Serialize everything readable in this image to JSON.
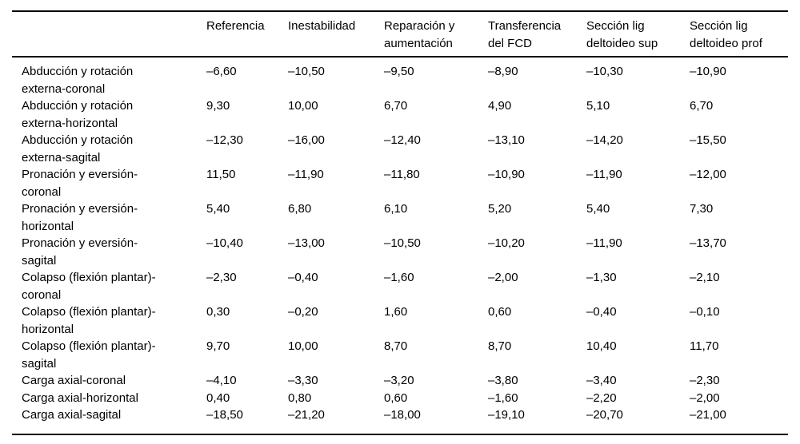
{
  "table": {
    "corner_label": "",
    "columns": [
      "Referencia",
      "Inestabilidad",
      "Reparación y\naumentación",
      "Transferencia\ndel FCD",
      "Sección lig\ndeltoideo sup",
      "Sección lig\ndeltoideo prof"
    ],
    "rows": [
      {
        "label": "Abducción y rotación\nexterna-coronal",
        "values": [
          "–6,60",
          "–10,50",
          "–9,50",
          "–8,90",
          "–10,30",
          "–10,90"
        ]
      },
      {
        "label": "Abducción y rotación\nexterna-horizontal",
        "values": [
          "9,30",
          "10,00",
          "6,70",
          "4,90",
          "5,10",
          "6,70"
        ]
      },
      {
        "label": "Abducción y rotación\nexterna-sagital",
        "values": [
          "–12,30",
          "–16,00",
          "–12,40",
          "–13,10",
          "–14,20",
          "–15,50"
        ]
      },
      {
        "label": "Pronación y eversión-\ncoronal",
        "values": [
          "11,50",
          "–11,90",
          "–11,80",
          "–10,90",
          "–11,90",
          "–12,00"
        ]
      },
      {
        "label": "Pronación y eversión-\nhorizontal",
        "values": [
          "5,40",
          "6,80",
          "6,10",
          "5,20",
          "5,40",
          "7,30"
        ]
      },
      {
        "label": "Pronación y eversión-\nsagital",
        "values": [
          "–10,40",
          "–13,00",
          "–10,50",
          "–10,20",
          "–11,90",
          "–13,70"
        ]
      },
      {
        "label": "Colapso (flexión plantar)-\ncoronal",
        "values": [
          "–2,30",
          "–0,40",
          "–1,60",
          "–2,00",
          "–1,30",
          "–2,10"
        ]
      },
      {
        "label": "Colapso (flexión plantar)-\nhorizontal",
        "values": [
          "0,30",
          "–0,20",
          "1,60",
          "0,60",
          "–0,40",
          "–0,10"
        ]
      },
      {
        "label": "Colapso (flexión plantar)-\nsagital",
        "values": [
          "9,70",
          "10,00",
          "8,70",
          "8,70",
          "10,40",
          "11,70"
        ]
      },
      {
        "label": "Carga axial-coronal",
        "values": [
          "–4,10",
          "–3,30",
          "–3,20",
          "–3,80",
          "–3,40",
          "–2,30"
        ]
      },
      {
        "label": "Carga axial-horizontal",
        "values": [
          "0,40",
          "0,80",
          "0,60",
          "–1,60",
          "–2,20",
          "–2,00"
        ]
      },
      {
        "label": "Carga axial-sagital",
        "values": [
          "–18,50",
          "–21,20",
          "–18,00",
          "–19,10",
          "–20,70",
          "–21,00"
        ]
      }
    ]
  },
  "colors": {
    "background": "#ffffff",
    "text": "#000000",
    "rule": "#000000"
  }
}
